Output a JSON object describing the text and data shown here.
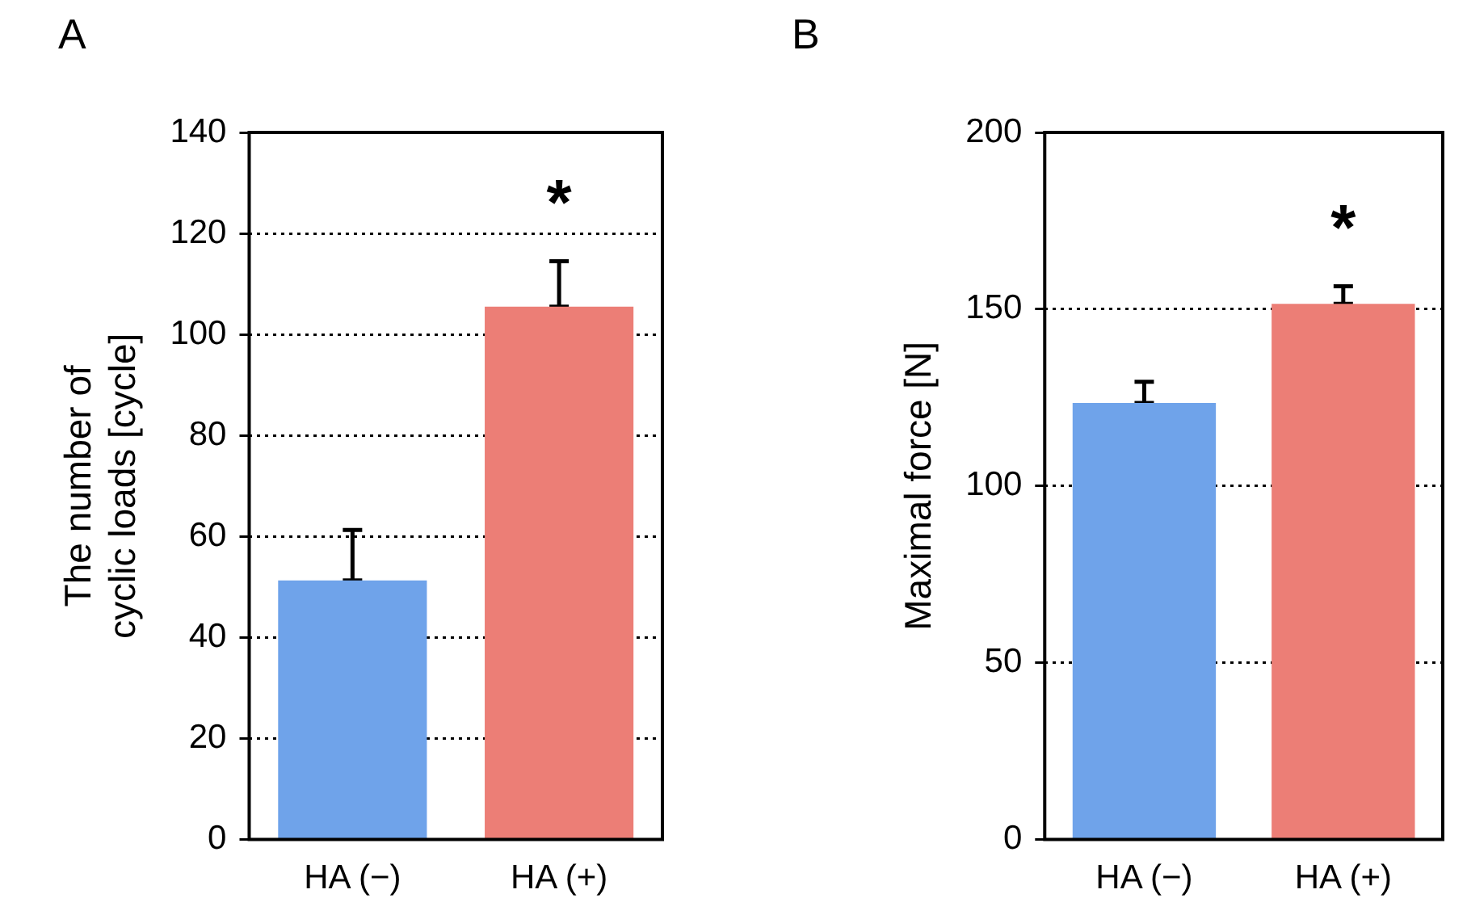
{
  "chart_data": [
    {
      "type": "bar",
      "title": "A",
      "ylabel": "The number of\ncyclic loads [cycle]",
      "categories": [
        "HA (−)",
        "HA (+)"
      ],
      "values": [
        51.3,
        105.5
      ],
      "colors": [
        "#6fa3ea",
        "#ec7e76"
      ],
      "errors": [
        [
          51.3,
          61.3
        ],
        [
          105.5,
          114.5
        ]
      ],
      "ylim": [
        0,
        140
      ],
      "yticks": [
        0,
        20,
        40,
        60,
        80,
        100,
        120,
        140
      ],
      "grid": "y",
      "annotations": [
        "*"
      ]
    },
    {
      "type": "bar",
      "title": "B",
      "ylabel": "Maximal force [N]",
      "categories": [
        "HA (−)",
        "HA (+)"
      ],
      "values": [
        123.5,
        151.5
      ],
      "colors": [
        "#6fa3ea",
        "#ec7e76"
      ],
      "errors": [
        [
          123.5,
          129.5
        ],
        [
          151.5,
          156.5
        ]
      ],
      "ylim": [
        0,
        200
      ],
      "yticks": [
        0,
        50,
        100,
        150,
        200
      ],
      "grid": "y",
      "annotations": [
        "*"
      ]
    }
  ]
}
